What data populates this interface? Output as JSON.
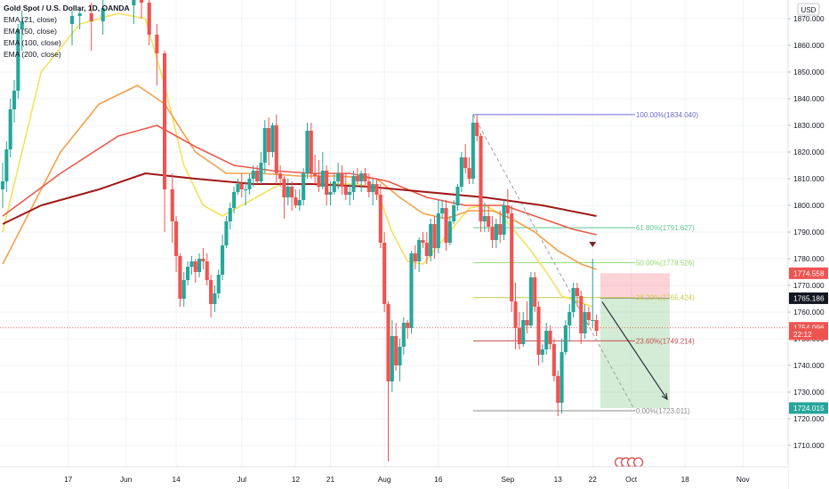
{
  "legend": {
    "title": "Gold Spot / U.S. Dollar, 1D, OANDA",
    "ema": [
      "EMA (21, close)",
      "EMA (50, close)",
      "EMA (100, close)",
      "EMA (200, close)"
    ]
  },
  "chart_data": {
    "type": "candlestick",
    "currency": "USD",
    "ylim": [
      1702,
      1877
    ],
    "y_ticks": [
      1710,
      1720,
      1730,
      1740,
      1750,
      1760,
      1770,
      1780,
      1790,
      1800,
      1810,
      1820,
      1830,
      1840,
      1850,
      1860,
      1870
    ],
    "x_ticks": [
      "17",
      "Jun",
      "14",
      "Jul",
      "12",
      "21",
      "Aug",
      "16",
      "Sep",
      "13",
      "22",
      "Oct",
      "18",
      "Nov"
    ],
    "x_tick_days": [
      17,
      32,
      45,
      62,
      76,
      85,
      99,
      113,
      131,
      144,
      153,
      163,
      177,
      192
    ],
    "x_range_days": [
      0,
      203
    ],
    "grid": true,
    "colors": {
      "up": "#26a69a",
      "down": "#ef5350",
      "ema21": "#f5e15a",
      "ema50": "#f5a04a",
      "ema100": "#ea5a4a",
      "ema200": "#a01818"
    },
    "candles": [
      [
        0,
        1806,
        1816,
        1799,
        1809
      ],
      [
        1,
        1809,
        1824,
        1805,
        1821
      ],
      [
        2,
        1821,
        1840,
        1818,
        1836
      ],
      [
        3,
        1836,
        1847,
        1831,
        1843
      ],
      [
        4,
        1843,
        1868,
        1840,
        1866
      ],
      [
        5,
        1866,
        1873,
        1858,
        1869
      ],
      [
        18,
        1868,
        1873,
        1860,
        1871
      ],
      [
        20,
        1871,
        1874,
        1866,
        1872
      ],
      [
        23,
        1872,
        1876,
        1858,
        1869
      ],
      [
        26,
        1869,
        1877,
        1864,
        1874
      ],
      [
        34,
        1875,
        1880,
        1868,
        1878
      ],
      [
        36,
        1878,
        1882,
        1870,
        1876
      ],
      [
        38,
        1876,
        1880,
        1860,
        1864
      ],
      [
        40,
        1864,
        1868,
        1845,
        1857
      ],
      [
        42,
        1857,
        1858,
        1790,
        1806
      ],
      [
        44,
        1806,
        1812,
        1786,
        1794
      ],
      [
        45,
        1794,
        1796,
        1775,
        1781
      ],
      [
        46,
        1781,
        1782,
        1762,
        1765
      ],
      [
        47,
        1765,
        1775,
        1762,
        1772
      ],
      [
        48,
        1772,
        1779,
        1770,
        1777
      ],
      [
        49,
        1777,
        1781,
        1774,
        1779
      ],
      [
        50,
        1779,
        1780,
        1771,
        1775
      ],
      [
        51,
        1775,
        1782,
        1773,
        1780
      ],
      [
        52,
        1780,
        1784,
        1776,
        1779
      ],
      [
        53,
        1779,
        1782,
        1770,
        1772
      ],
      [
        54,
        1772,
        1774,
        1758,
        1763
      ],
      [
        55,
        1763,
        1770,
        1760,
        1767
      ],
      [
        56,
        1767,
        1776,
        1765,
        1774
      ],
      [
        57,
        1774,
        1789,
        1772,
        1785
      ],
      [
        58,
        1785,
        1796,
        1784,
        1794
      ],
      [
        59,
        1794,
        1801,
        1791,
        1799
      ],
      [
        60,
        1799,
        1807,
        1797,
        1805
      ],
      [
        61,
        1805,
        1810,
        1804,
        1808
      ],
      [
        62,
        1808,
        1812,
        1803,
        1806
      ],
      [
        63,
        1806,
        1809,
        1800,
        1806
      ],
      [
        64,
        1806,
        1812,
        1804,
        1810
      ],
      [
        65,
        1810,
        1815,
        1807,
        1813
      ],
      [
        66,
        1813,
        1815,
        1808,
        1809
      ],
      [
        67,
        1809,
        1820,
        1808,
        1816
      ],
      [
        68,
        1816,
        1832,
        1812,
        1829
      ],
      [
        69,
        1829,
        1833,
        1815,
        1820
      ],
      [
        70,
        1820,
        1831,
        1818,
        1830
      ],
      [
        71,
        1830,
        1834,
        1808,
        1812
      ],
      [
        72,
        1812,
        1815,
        1807,
        1810
      ],
      [
        73,
        1810,
        1811,
        1795,
        1803
      ],
      [
        74,
        1803,
        1810,
        1800,
        1807
      ],
      [
        75,
        1807,
        1809,
        1798,
        1803
      ],
      [
        76,
        1803,
        1806,
        1799,
        1800
      ],
      [
        77,
        1800,
        1806,
        1798,
        1802
      ],
      [
        78,
        1802,
        1814,
        1800,
        1812
      ],
      [
        79,
        1812,
        1831,
        1810,
        1828
      ],
      [
        80,
        1828,
        1831,
        1810,
        1812
      ],
      [
        81,
        1812,
        1819,
        1808,
        1811
      ],
      [
        82,
        1811,
        1817,
        1805,
        1807
      ],
      [
        83,
        1807,
        1820,
        1806,
        1813
      ],
      [
        84,
        1813,
        1815,
        1800,
        1804
      ],
      [
        85,
        1804,
        1809,
        1800,
        1805
      ],
      [
        86,
        1805,
        1812,
        1804,
        1809
      ],
      [
        87,
        1809,
        1816,
        1806,
        1812
      ],
      [
        88,
        1812,
        1815,
        1804,
        1807
      ],
      [
        89,
        1807,
        1812,
        1802,
        1804
      ],
      [
        90,
        1804,
        1808,
        1800,
        1805
      ],
      [
        91,
        1805,
        1813,
        1802,
        1811
      ],
      [
        92,
        1811,
        1814,
        1808,
        1809
      ],
      [
        93,
        1809,
        1813,
        1805,
        1812
      ],
      [
        94,
        1812,
        1814,
        1807,
        1809
      ],
      [
        95,
        1809,
        1812,
        1803,
        1805
      ],
      [
        96,
        1805,
        1810,
        1800,
        1808
      ],
      [
        97,
        1808,
        1810,
        1802,
        1804
      ],
      [
        98,
        1804,
        1808,
        1784,
        1786
      ],
      [
        99,
        1786,
        1790,
        1760,
        1763
      ],
      [
        100,
        1763,
        1764,
        1704,
        1734
      ],
      [
        101,
        1734,
        1757,
        1730,
        1751
      ],
      [
        102,
        1751,
        1756,
        1738,
        1740
      ],
      [
        103,
        1740,
        1750,
        1734,
        1747
      ],
      [
        104,
        1747,
        1758,
        1744,
        1756
      ],
      [
        105,
        1756,
        1757,
        1750,
        1754
      ],
      [
        106,
        1754,
        1783,
        1752,
        1782
      ],
      [
        107,
        1782,
        1785,
        1776,
        1779
      ],
      [
        108,
        1779,
        1788,
        1775,
        1787
      ],
      [
        109,
        1787,
        1790,
        1784,
        1786
      ],
      [
        110,
        1786,
        1790,
        1778,
        1781
      ],
      [
        111,
        1781,
        1795,
        1779,
        1793
      ],
      [
        112,
        1793,
        1796,
        1780,
        1784
      ],
      [
        113,
        1784,
        1802,
        1782,
        1797
      ],
      [
        114,
        1797,
        1802,
        1795,
        1799
      ],
      [
        115,
        1799,
        1802,
        1783,
        1786
      ],
      [
        116,
        1786,
        1796,
        1785,
        1794
      ],
      [
        117,
        1794,
        1802,
        1793,
        1800
      ],
      [
        118,
        1800,
        1808,
        1798,
        1807
      ],
      [
        119,
        1807,
        1820,
        1805,
        1818
      ],
      [
        120,
        1818,
        1823,
        1812,
        1814
      ],
      [
        121,
        1814,
        1818,
        1808,
        1810
      ],
      [
        122,
        1810,
        1834,
        1808,
        1831
      ],
      [
        123,
        1831,
        1834,
        1824,
        1826
      ],
      [
        124,
        1826,
        1827,
        1790,
        1794
      ],
      [
        125,
        1794,
        1801,
        1790,
        1796
      ],
      [
        126,
        1796,
        1800,
        1790,
        1792
      ],
      [
        127,
        1792,
        1796,
        1784,
        1787
      ],
      [
        128,
        1787,
        1795,
        1784,
        1793
      ],
      [
        129,
        1793,
        1798,
        1786,
        1789
      ],
      [
        130,
        1789,
        1802,
        1787,
        1800
      ],
      [
        131,
        1800,
        1806,
        1795,
        1797
      ],
      [
        132,
        1797,
        1800,
        1760,
        1764
      ],
      [
        133,
        1764,
        1771,
        1746,
        1754
      ],
      [
        134,
        1754,
        1760,
        1746,
        1748
      ],
      [
        135,
        1748,
        1760,
        1747,
        1757
      ],
      [
        136,
        1757,
        1764,
        1752,
        1755
      ],
      [
        137,
        1755,
        1775,
        1754,
        1773
      ],
      [
        138,
        1773,
        1775,
        1760,
        1762
      ],
      [
        139,
        1762,
        1764,
        1740,
        1744
      ],
      [
        140,
        1744,
        1748,
        1741,
        1746
      ],
      [
        141,
        1746,
        1756,
        1744,
        1753
      ],
      [
        142,
        1753,
        1755,
        1746,
        1748
      ],
      [
        143,
        1748,
        1750,
        1734,
        1736
      ],
      [
        144,
        1736,
        1738,
        1721,
        1726
      ],
      [
        145,
        1726,
        1750,
        1722,
        1745
      ],
      [
        146,
        1745,
        1757,
        1744,
        1755
      ],
      [
        147,
        1755,
        1763,
        1749,
        1760
      ],
      [
        148,
        1760,
        1771,
        1758,
        1769
      ],
      [
        149,
        1769,
        1771,
        1762,
        1766
      ],
      [
        150,
        1766,
        1768,
        1748,
        1752
      ],
      [
        151,
        1752,
        1763,
        1750,
        1760
      ],
      [
        152,
        1760,
        1762,
        1755,
        1757
      ],
      [
        153,
        1757,
        1780,
        1754,
        1757
      ],
      [
        154,
        1757,
        1759,
        1751,
        1753
      ]
    ],
    "emas": {
      "ema21": [
        [
          0,
          1790
        ],
        [
          10,
          1850
        ],
        [
          20,
          1868
        ],
        [
          30,
          1872
        ],
        [
          37,
          1870
        ],
        [
          42,
          1845
        ],
        [
          47,
          1815
        ],
        [
          52,
          1800
        ],
        [
          57,
          1796
        ],
        [
          62,
          1800
        ],
        [
          67,
          1804
        ],
        [
          72,
          1808
        ],
        [
          77,
          1808
        ],
        [
          82,
          1808
        ],
        [
          87,
          1808
        ],
        [
          92,
          1808
        ],
        [
          97,
          1806
        ],
        [
          101,
          1790
        ],
        [
          105,
          1779
        ],
        [
          109,
          1778
        ],
        [
          113,
          1785
        ],
        [
          117,
          1792
        ],
        [
          121,
          1799
        ],
        [
          125,
          1800
        ],
        [
          129,
          1797
        ],
        [
          133,
          1790
        ],
        [
          137,
          1783
        ],
        [
          141,
          1775
        ],
        [
          145,
          1766
        ],
        [
          149,
          1764
        ],
        [
          153,
          1762
        ]
      ],
      "ema50": [
        [
          0,
          1778
        ],
        [
          15,
          1820
        ],
        [
          25,
          1838
        ],
        [
          35,
          1845
        ],
        [
          42,
          1838
        ],
        [
          50,
          1820
        ],
        [
          58,
          1812
        ],
        [
          67,
          1812
        ],
        [
          77,
          1811
        ],
        [
          87,
          1811
        ],
        [
          97,
          1810
        ],
        [
          103,
          1803
        ],
        [
          109,
          1797
        ],
        [
          115,
          1795
        ],
        [
          121,
          1798
        ],
        [
          127,
          1798
        ],
        [
          132,
          1795
        ],
        [
          138,
          1790
        ],
        [
          144,
          1783
        ],
        [
          150,
          1778
        ],
        [
          154,
          1776
        ]
      ],
      "ema100": [
        [
          0,
          1796
        ],
        [
          15,
          1812
        ],
        [
          30,
          1826
        ],
        [
          40,
          1830
        ],
        [
          50,
          1822
        ],
        [
          60,
          1815
        ],
        [
          70,
          1813
        ],
        [
          80,
          1812
        ],
        [
          90,
          1812
        ],
        [
          100,
          1809
        ],
        [
          110,
          1803
        ],
        [
          120,
          1800
        ],
        [
          130,
          1800
        ],
        [
          140,
          1795
        ],
        [
          148,
          1791
        ],
        [
          154,
          1789
        ]
      ],
      "ema200": [
        [
          0,
          1793
        ],
        [
          10,
          1800
        ],
        [
          25,
          1806
        ],
        [
          37,
          1812
        ],
        [
          50,
          1810
        ],
        [
          65,
          1808
        ],
        [
          80,
          1808
        ],
        [
          95,
          1807
        ],
        [
          110,
          1805
        ],
        [
          125,
          1803
        ],
        [
          140,
          1800
        ],
        [
          154,
          1796
        ]
      ]
    },
    "fib_levels": [
      {
        "label": "100.00%(1834.040)",
        "price": 1834.04,
        "color": "#6a6bd6"
      },
      {
        "label": "61.80%(1791.627)",
        "price": 1791.627,
        "color": "#5cc98d"
      },
      {
        "label": "50.00%(1778.526)",
        "price": 1778.526,
        "color": "#8fd96b"
      },
      {
        "label": "38.20%(1765.424)",
        "price": 1765.424,
        "color": "#c9c94a"
      },
      {
        "label": "23.60%(1749.214)",
        "price": 1749.214,
        "color": "#c64b4b"
      },
      {
        "label": "0.00%(1723.011)",
        "price": 1723.011,
        "color": "#8b8b8b"
      }
    ],
    "fib_x_range": [
      122,
      164
    ],
    "position": {
      "x_start": 155,
      "x_end": 173,
      "entry": 1765.186,
      "stop": 1774.558,
      "target": 1724.015
    },
    "price_labels": [
      {
        "text": "1774.558",
        "price": 1774.558,
        "color": "#ef5350"
      },
      {
        "text": "1765.186",
        "price": 1765.186,
        "color": "#131722"
      },
      {
        "text": "1754.096",
        "price": 1754.096,
        "color": "#ef5350"
      },
      {
        "text": "22:12",
        "price": 1751.7,
        "color": "#ef5350"
      },
      {
        "text": "1724.015",
        "price": 1724.015,
        "color": "#26a69a"
      }
    ],
    "last_price": 1754.096
  }
}
